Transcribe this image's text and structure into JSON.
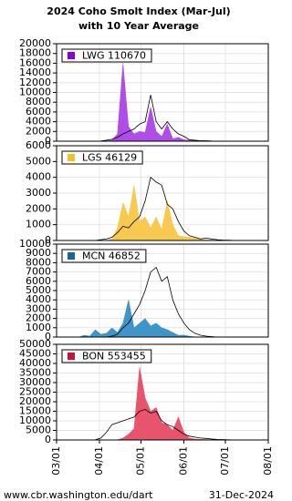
{
  "title": [
    "2024 Coho Smolt Index (Mar-Jul)",
    "with 10 Year Average"
  ],
  "x": [
    "03/01",
    "03/05",
    "03/09",
    "03/13",
    "03/17",
    "03/21",
    "03/25",
    "03/29",
    "04/02",
    "04/06",
    "04/10",
    "04/14",
    "04/18",
    "04/22",
    "04/26",
    "04/30",
    "05/04",
    "05/08",
    "05/12",
    "05/16",
    "05/20",
    "05/24",
    "05/28",
    "06/01",
    "06/05",
    "06/09",
    "06/13",
    "06/17",
    "06/21",
    "06/25",
    "06/29",
    "07/03",
    "07/07",
    "07/11",
    "07/15",
    "07/19",
    "07/23",
    "07/27",
    "07/31"
  ],
  "xlim": [
    "03/01",
    "08/01"
  ],
  "xticks": [
    "03/01",
    "04/01",
    "05/01",
    "06/01",
    "07/01",
    "08/01"
  ],
  "grid": true,
  "chart_data": [
    {
      "type": "area",
      "ylim": [
        0,
        20000
      ],
      "yticks": [
        0,
        2000,
        4000,
        6000,
        8000,
        10000,
        12000,
        14000,
        16000,
        18000,
        20000
      ],
      "series": [
        {
          "name": "LWG 110670",
          "kind": "area",
          "color": "#b04ce8",
          "legend_color": "#8a00cc",
          "values": [
            0,
            0,
            0,
            0,
            0,
            0,
            0,
            0,
            0,
            0,
            200,
            1500,
            16000,
            3000,
            1500,
            2000,
            1800,
            7000,
            2000,
            1000,
            3500,
            500,
            800,
            300,
            200,
            100,
            100,
            50,
            50,
            0,
            0,
            0,
            0,
            0,
            0,
            0,
            0,
            0,
            0
          ]
        },
        {
          "kind": "line",
          "color": "#000000",
          "values": [
            0,
            0,
            0,
            0,
            0,
            0,
            0,
            0,
            50,
            200,
            400,
            800,
            1500,
            2000,
            2500,
            3500,
            4000,
            9500,
            4000,
            2500,
            4000,
            2500,
            1500,
            1000,
            300,
            200,
            100,
            100,
            50,
            30,
            20,
            10,
            0,
            0,
            0,
            0,
            0,
            0,
            0
          ]
        }
      ]
    },
    {
      "type": "area",
      "ylim": [
        0,
        6000
      ],
      "yticks": [
        0,
        1000,
        2000,
        3000,
        4000,
        5000,
        6000
      ],
      "series": [
        {
          "name": "LGS 46129",
          "kind": "area",
          "color": "#f7ca4f",
          "legend_color": "#f0bf30",
          "values": [
            0,
            0,
            0,
            0,
            0,
            0,
            0,
            0,
            0,
            0,
            100,
            800,
            2400,
            1500,
            3500,
            1200,
            1500,
            800,
            1500,
            700,
            2500,
            1000,
            300,
            250,
            200,
            150,
            100,
            50,
            50,
            0,
            0,
            0,
            0,
            0,
            0,
            0,
            0,
            0,
            0
          ]
        },
        {
          "kind": "line",
          "color": "#000000",
          "values": [
            0,
            0,
            0,
            0,
            0,
            0,
            0,
            0,
            50,
            100,
            200,
            500,
            900,
            800,
            1200,
            1500,
            2500,
            4000,
            3700,
            3500,
            2300,
            2000,
            1200,
            600,
            300,
            200,
            100,
            150,
            100,
            50,
            30,
            20,
            0,
            0,
            0,
            0,
            0,
            0,
            0
          ]
        }
      ]
    },
    {
      "type": "area",
      "ylim": [
        0,
        10000
      ],
      "yticks": [
        0,
        1000,
        2000,
        3000,
        4000,
        5000,
        6000,
        7000,
        8000,
        9000,
        10000
      ],
      "series": [
        {
          "name": "MCN 46852",
          "kind": "area",
          "color": "#3f95c8",
          "legend_color": "#1565a0",
          "values": [
            0,
            0,
            0,
            0,
            0,
            200,
            100,
            800,
            300,
            400,
            1000,
            500,
            1500,
            4000,
            1000,
            1500,
            2000,
            1200,
            1500,
            1000,
            800,
            500,
            200,
            200,
            100,
            0,
            0,
            0,
            0,
            0,
            0,
            0,
            0,
            0,
            0,
            0,
            0,
            0,
            0
          ]
        },
        {
          "kind": "line",
          "color": "#000000",
          "values": [
            0,
            0,
            0,
            0,
            0,
            0,
            0,
            0,
            0,
            0,
            100,
            300,
            1000,
            1500,
            2500,
            3500,
            5000,
            7000,
            7500,
            6000,
            6500,
            4000,
            2500,
            1500,
            800,
            400,
            200,
            100,
            50,
            0,
            0,
            0,
            0,
            0,
            0,
            0,
            0,
            0,
            0
          ]
        }
      ]
    },
    {
      "type": "area",
      "ylim": [
        0,
        50000
      ],
      "yticks": [
        0,
        5000,
        10000,
        15000,
        20000,
        25000,
        30000,
        35000,
        40000,
        45000,
        50000
      ],
      "series": [
        {
          "name": "BON 553455",
          "kind": "area",
          "color": "#e8546e",
          "legend_color": "#d0103c",
          "values": [
            0,
            0,
            0,
            0,
            0,
            0,
            0,
            0,
            0,
            0,
            0,
            100,
            1000,
            3000,
            6000,
            38000,
            22000,
            15000,
            17000,
            9000,
            8000,
            5000,
            12000,
            4000,
            1000,
            500,
            300,
            200,
            100,
            0,
            0,
            0,
            0,
            0,
            0,
            0,
            0,
            0,
            0
          ]
        },
        {
          "kind": "line",
          "color": "#000000",
          "values": [
            0,
            0,
            0,
            0,
            0,
            0,
            0,
            100,
            1000,
            4000,
            8000,
            9000,
            10000,
            11000,
            12000,
            15000,
            16000,
            14000,
            15000,
            10000,
            8000,
            7000,
            5000,
            3000,
            2000,
            1500,
            1000,
            800,
            500,
            300,
            200,
            100,
            50,
            0,
            0,
            0,
            0,
            0,
            0
          ]
        }
      ]
    }
  ],
  "footer": {
    "left": "www.cbr.washington.edu/dart",
    "right": "31-Dec-2024"
  }
}
